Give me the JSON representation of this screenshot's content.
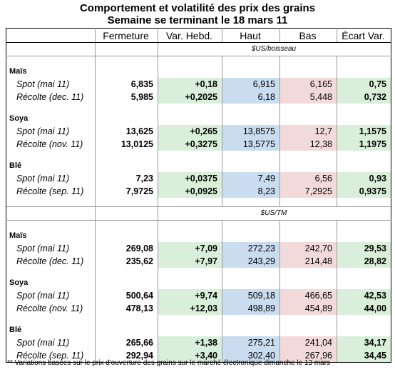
{
  "title_line1": "Comportement et volatilité des prix des grains",
  "title_line2": "Semaine se terminant le 18 mars 11",
  "headers": [
    "Fermeture",
    "Var. Hebd.",
    "Haut",
    "Bas",
    "Écart Var."
  ],
  "unit1": "$US/boisseau",
  "unit2": "$US/TM",
  "s1": {
    "g1": "Maïs",
    "g1r1": [
      "Spot (mai 11)",
      "6,835",
      "+0,18",
      "6,915",
      "6,165",
      "0,75"
    ],
    "g1r2": [
      "Récolte (dec. 11)",
      "5,985",
      "+0,2025",
      "6,18",
      "5,448",
      "0,732"
    ],
    "g2": "Soya",
    "g2r1": [
      "Spot (mai 11)",
      "13,625",
      "+0,265",
      "13,8575",
      "12,7",
      "1,1575"
    ],
    "g2r2": [
      "Récolte (nov. 11)",
      "13,0125",
      "+0,3275",
      "13,5775",
      "12,38",
      "1,1975"
    ],
    "g3": "Blé",
    "g3r1": [
      "Spot (mai 11)",
      "7,23",
      "+0,0375",
      "7,49",
      "6,56",
      "0,93"
    ],
    "g3r2": [
      "Récolte (sep. 11)",
      "7,9725",
      "+0,0925",
      "8,23",
      "7,2925",
      "0,9375"
    ]
  },
  "s2": {
    "g1": "Maïs",
    "g1r1": [
      "Spot (mai 11)",
      "269,08",
      "+7,09",
      "272,23",
      "242,70",
      "29,53"
    ],
    "g1r2": [
      "Récolte (dec. 11)",
      "235,62",
      "+7,97",
      "243,29",
      "214,48",
      "28,82"
    ],
    "g2": "Soya",
    "g2r1": [
      "Spot (mai 11)",
      "500,64",
      "+9,74",
      "509,18",
      "466,65",
      "42,53"
    ],
    "g2r2": [
      "Récolte (nov. 11)",
      "478,13",
      "+12,03",
      "498,89",
      "454,89",
      "44,00"
    ],
    "g3": "Blé",
    "g3r1": [
      "Spot (mai 11)",
      "265,66",
      "+1,38",
      "275,21",
      "241,04",
      "34,17"
    ],
    "g3r2": [
      "Récolte (sep. 11)",
      "292,94",
      "+3,40",
      "302,40",
      "267,96",
      "34,45"
    ]
  },
  "footnote": "** Variations basées sur le prix d'ouverture des grains sur le marché électronique dimanche le 13 mars"
}
